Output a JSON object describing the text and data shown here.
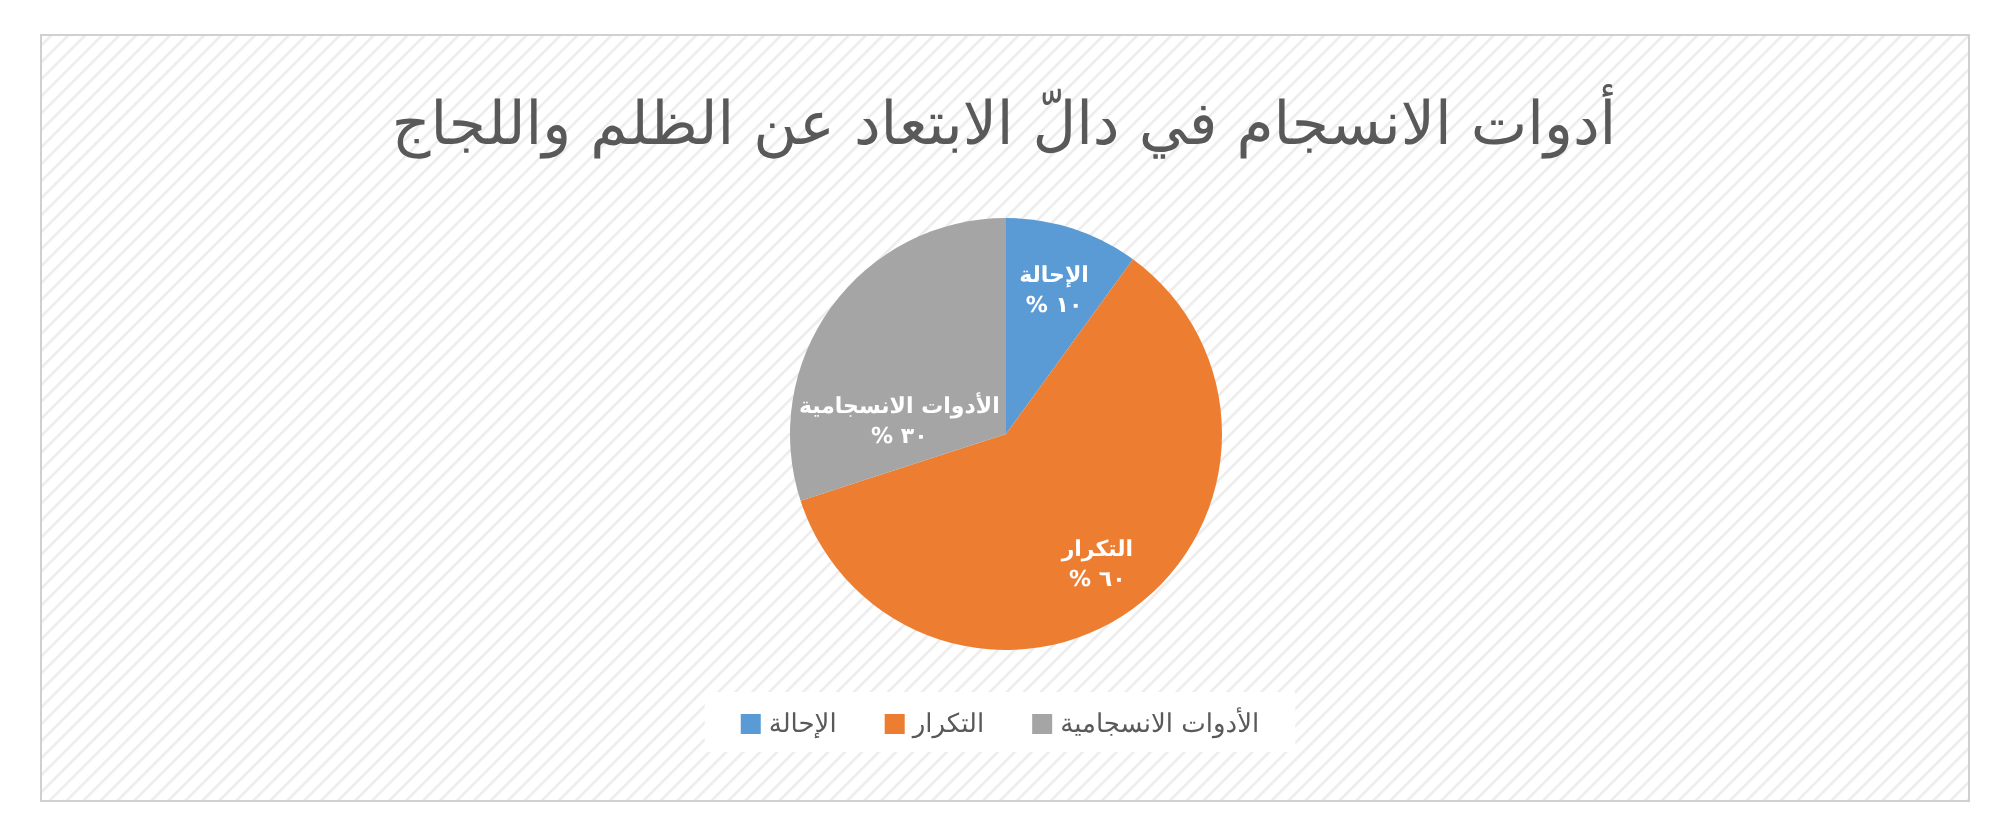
{
  "chart_data": {
    "type": "pie",
    "title": "أدوات الانسجام في دالّ الابتعاد عن الظلم واللجاج",
    "categories": [
      "الإحالة",
      "التكرار",
      "الأدوات الانسجامية"
    ],
    "values": [
      10,
      60,
      30
    ],
    "colors": [
      "#5b9bd5",
      "#ed7d31",
      "#a5a5a5"
    ],
    "value_labels": [
      "١٠ %",
      "٦٠ %",
      "٣٠ %"
    ],
    "legend": "bottom"
  }
}
